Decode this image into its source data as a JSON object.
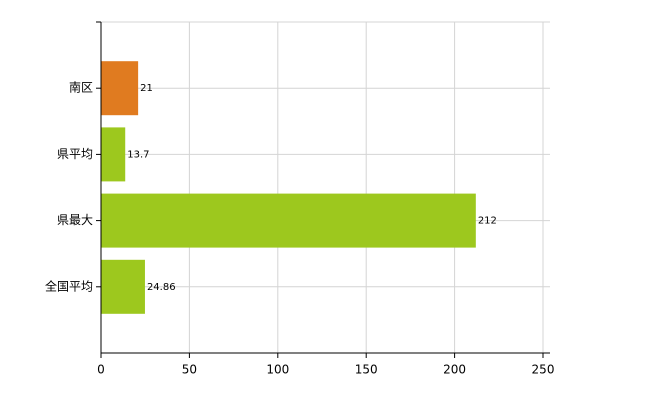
{
  "chart_data": {
    "type": "hbar",
    "categories": [
      "南区",
      "県平均",
      "県最大",
      "全国平均"
    ],
    "values": [
      21,
      13.7,
      212,
      24.86
    ],
    "colors": [
      "#e07b20",
      "#9dc81e",
      "#9dc81e",
      "#9dc81e"
    ],
    "xlim": [
      0,
      250
    ],
    "xticks": [
      0,
      50,
      100,
      150,
      200,
      250
    ],
    "grid": true
  }
}
